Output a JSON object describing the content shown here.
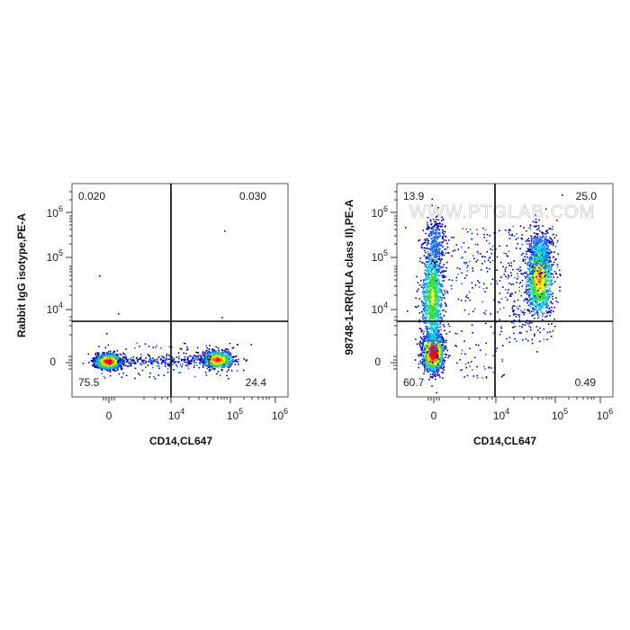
{
  "chart_data": [
    {
      "type": "scatter",
      "plot_kind": "flow cytometry density dot plot",
      "xlabel": "CD14,CL647",
      "ylabel": "Rabbit IgG isotype,PE-A",
      "x_scale": "biexponential",
      "y_scale": "biexponential",
      "x_tick_labels": [
        "0",
        "10^4",
        "10^5",
        "10^6"
      ],
      "y_tick_labels": [
        "0",
        "10^4",
        "10^5",
        "10^6"
      ],
      "gate": {
        "x": 10000,
        "y": 5000
      },
      "quadrants": {
        "upper_left": "0.020",
        "upper_right": "0.030",
        "lower_left": "75.5",
        "lower_right": "24.4"
      },
      "populations": [
        {
          "name": "",
          "x_center": 0,
          "y_center": 0,
          "percent": 75.5
        },
        {
          "name": "",
          "x_center": 60000,
          "y_center": 0,
          "percent": 24.4
        }
      ],
      "colors": [
        "#0000b0",
        "#1a66ff",
        "#00ccdd",
        "#33dd33",
        "#ffee00",
        "#ff8800",
        "#ff0000"
      ]
    },
    {
      "type": "scatter",
      "plot_kind": "flow cytometry density dot plot",
      "xlabel": "CD14,CL647",
      "ylabel": "98748-1-RR(HLA class II),PE-A",
      "x_scale": "biexponential",
      "y_scale": "biexponential",
      "x_tick_labels": [
        "0",
        "10^4",
        "10^5",
        "10^6"
      ],
      "y_tick_labels": [
        "0",
        "10^4",
        "10^5",
        "10^6"
      ],
      "gate": {
        "x": 10000,
        "y": 5000
      },
      "quadrants": {
        "upper_left": "13.9",
        "upper_right": "25.0",
        "lower_left": "60.7",
        "lower_right": "0.49"
      },
      "populations": [
        {
          "name": "",
          "x_center": 0,
          "y_center": 0,
          "percent": 60.7
        },
        {
          "name": "",
          "x_center": 0,
          "y_center": 20000,
          "percent": 13.9
        },
        {
          "name": "",
          "x_center": 60000,
          "y_center": 40000,
          "percent": 25.0
        }
      ],
      "watermark": "WWW.PTGLAB.COM",
      "colors": [
        "#0000b0",
        "#1a66ff",
        "#00ccdd",
        "#33dd33",
        "#ffee00",
        "#ff8800",
        "#ff0000"
      ]
    }
  ]
}
